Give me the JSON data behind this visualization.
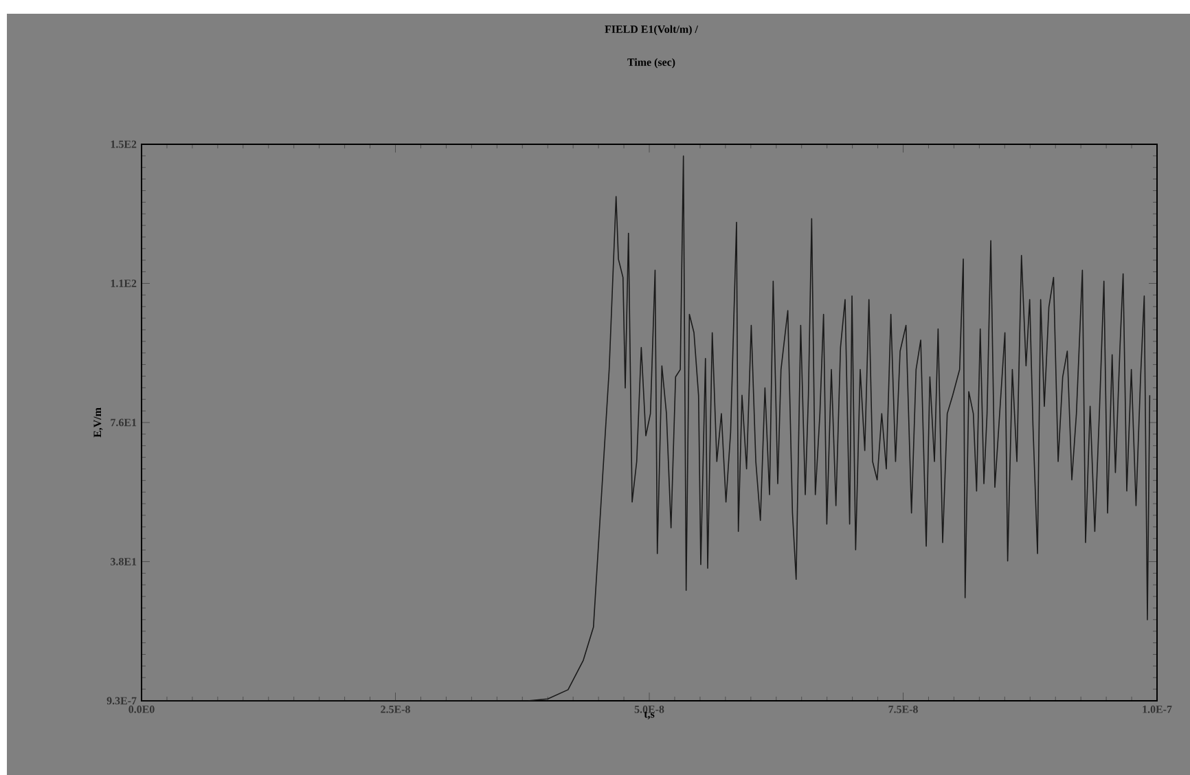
{
  "chart_data": {
    "type": "line",
    "title": "FIELD E1(Volt/m) /",
    "subtitle": "Time (sec)",
    "xlabel": "t,s",
    "ylabel": "E,V/m",
    "xlim": [
      0,
      1e-07
    ],
    "ylim": [
      9.3e-07,
      151.2
    ],
    "xticks": [
      {
        "value": 0,
        "label": "0.0E0"
      },
      {
        "value": 2.5e-08,
        "label": "2.5E-8"
      },
      {
        "value": 5e-08,
        "label": "5.0E-8"
      },
      {
        "value": 7.5e-08,
        "label": "7.5E-8"
      },
      {
        "value": 1e-07,
        "label": "1.0E-7"
      }
    ],
    "yticks": [
      {
        "value": 9.3e-07,
        "label": "9.3E-7"
      },
      {
        "value": 37.8,
        "label": "3.8E1"
      },
      {
        "value": 75.6,
        "label": "7.6E1"
      },
      {
        "value": 113.4,
        "label": "1.1E2"
      },
      {
        "value": 151.2,
        "label": "1.5E2"
      }
    ],
    "color": "#1a1a1a",
    "x": [
      0,
      3.8e-08,
      4e-08,
      4.2e-08,
      4.35e-08,
      4.45e-08,
      4.605e-08,
      4.673e-08,
      4.696e-08,
      4.741e-08,
      4.763e-08,
      4.795e-08,
      4.831e-08,
      4.876e-08,
      4.921e-08,
      4.966e-08,
      5.011e-08,
      5.057e-08,
      5.079e-08,
      5.124e-08,
      5.169e-08,
      5.214e-08,
      5.259e-08,
      5.305e-08,
      5.336e-08,
      5.363e-08,
      5.395e-08,
      5.44e-08,
      5.485e-08,
      5.507e-08,
      5.553e-08,
      5.575e-08,
      5.62e-08,
      5.665e-08,
      5.71e-08,
      5.755e-08,
      5.801e-08,
      5.859e-08,
      5.877e-08,
      5.913e-08,
      5.958e-08,
      6.004e-08,
      6.049e-08,
      6.094e-08,
      6.139e-08,
      6.184e-08,
      6.22e-08,
      6.265e-08,
      6.297e-08,
      6.364e-08,
      6.41e-08,
      6.446e-08,
      6.491e-08,
      6.536e-08,
      6.567e-08,
      6.599e-08,
      6.635e-08,
      6.68e-08,
      6.716e-08,
      6.748e-08,
      6.793e-08,
      6.838e-08,
      6.883e-08,
      6.928e-08,
      6.973e-08,
      6.996e-08,
      7.032e-08,
      7.077e-08,
      7.122e-08,
      7.163e-08,
      7.199e-08,
      7.244e-08,
      7.289e-08,
      7.334e-08,
      7.379e-08,
      7.425e-08,
      7.47e-08,
      7.528e-08,
      7.582e-08,
      7.627e-08,
      7.673e-08,
      7.727e-08,
      7.763e-08,
      7.808e-08,
      7.844e-08,
      7.889e-08,
      7.934e-08,
      7.988e-08,
      8.056e-08,
      8.092e-08,
      8.11e-08,
      8.146e-08,
      8.191e-08,
      8.223e-08,
      8.259e-08,
      8.295e-08,
      8.326e-08,
      8.363e-08,
      8.403e-08,
      8.462e-08,
      8.502e-08,
      8.529e-08,
      8.575e-08,
      8.62e-08,
      8.665e-08,
      8.71e-08,
      8.746e-08,
      8.778e-08,
      8.823e-08,
      8.854e-08,
      8.89e-08,
      8.935e-08,
      8.981e-08,
      9.026e-08,
      9.071e-08,
      9.116e-08,
      9.161e-08,
      9.206e-08,
      9.265e-08,
      9.296e-08,
      9.341e-08,
      9.387e-08,
      9.432e-08,
      9.477e-08,
      9.513e-08,
      9.558e-08,
      9.59e-08,
      9.635e-08,
      9.666e-08,
      9.702e-08,
      9.747e-08,
      9.793e-08,
      9.838e-08,
      9.874e-08,
      9.905e-08,
      9.928e-08
    ],
    "values": [
      9.3e-07,
      9.3e-07,
      0.5,
      3,
      11,
      20,
      90,
      137,
      120,
      115,
      85,
      127,
      54,
      65,
      96,
      72,
      78,
      117,
      40,
      91,
      78,
      47,
      88,
      90,
      148,
      30,
      105,
      100,
      83,
      37,
      93,
      36,
      100,
      65,
      78,
      54,
      73,
      130,
      46,
      83,
      63,
      102,
      65,
      49,
      85,
      56,
      114,
      59,
      90,
      106,
      51,
      33,
      102,
      56,
      83,
      131,
      56,
      78,
      105,
      48,
      90,
      53,
      96,
      109,
      48,
      110,
      41,
      90,
      68,
      109,
      65,
      60,
      78,
      63,
      105,
      65,
      95,
      102,
      51,
      90,
      98,
      42,
      88,
      65,
      101,
      43,
      78,
      83,
      90,
      120,
      28,
      84,
      78,
      57,
      101,
      59,
      78,
      125,
      58,
      83,
      100,
      38,
      90,
      65,
      121,
      91,
      109,
      75,
      40,
      109,
      80,
      107,
      115,
      65,
      88,
      95,
      60,
      78,
      117,
      43,
      80,
      46,
      78,
      114,
      51,
      94,
      62,
      96,
      116,
      57,
      90,
      53,
      88,
      110,
      22,
      83
    ]
  }
}
